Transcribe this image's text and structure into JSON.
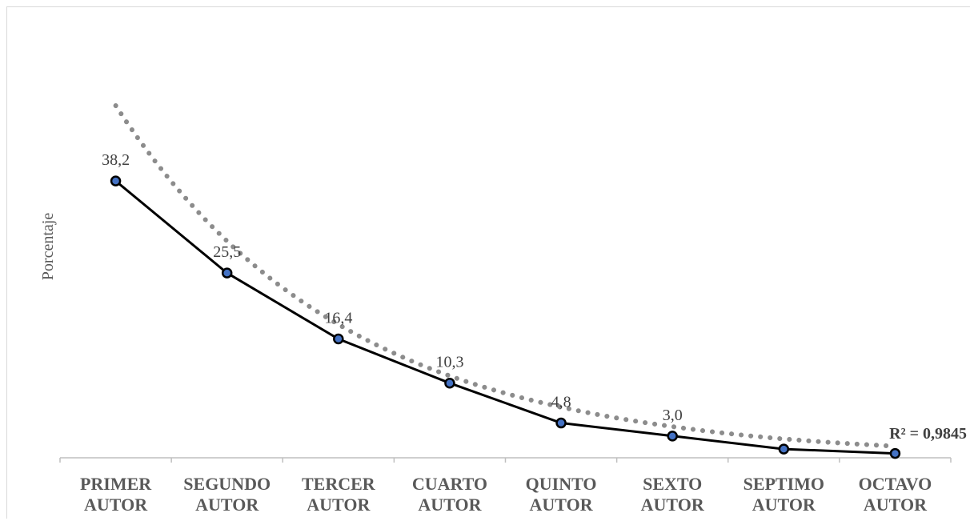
{
  "chart_data": {
    "type": "line",
    "title": "",
    "xlabel": "",
    "ylabel": "Porcentaje",
    "categories": [
      [
        "PRIMER",
        "AUTOR"
      ],
      [
        "SEGUNDO",
        "AUTOR"
      ],
      [
        "TERCER",
        "AUTOR"
      ],
      [
        "CUARTO",
        "AUTOR"
      ],
      [
        "QUINTO",
        "AUTOR"
      ],
      [
        "SEXTO",
        "AUTOR"
      ],
      [
        "SEPTIMO",
        "AUTOR"
      ],
      [
        "OCTAVO",
        "AUTOR"
      ]
    ],
    "series": [
      {
        "values": [
          38.2,
          25.5,
          16.4,
          10.3,
          4.8,
          3.0,
          1.2,
          0.6
        ],
        "data_labels": [
          "38,2",
          "25,5",
          "16,4",
          "10,3",
          "4,8",
          "3,0",
          "",
          ""
        ],
        "color": "#000000",
        "marker_color": "#4472c4"
      }
    ],
    "trendline": {
      "type": "exponential",
      "style": "dotted",
      "color": "#8c8c8c",
      "values": [
        48.6,
        29.9,
        18.4,
        11.3,
        7.0,
        4.3,
        2.6,
        1.6
      ],
      "r2_label": "R² = 0,9845"
    },
    "ylim": [
      0,
      48.6
    ],
    "grid": false,
    "legend": "none"
  }
}
